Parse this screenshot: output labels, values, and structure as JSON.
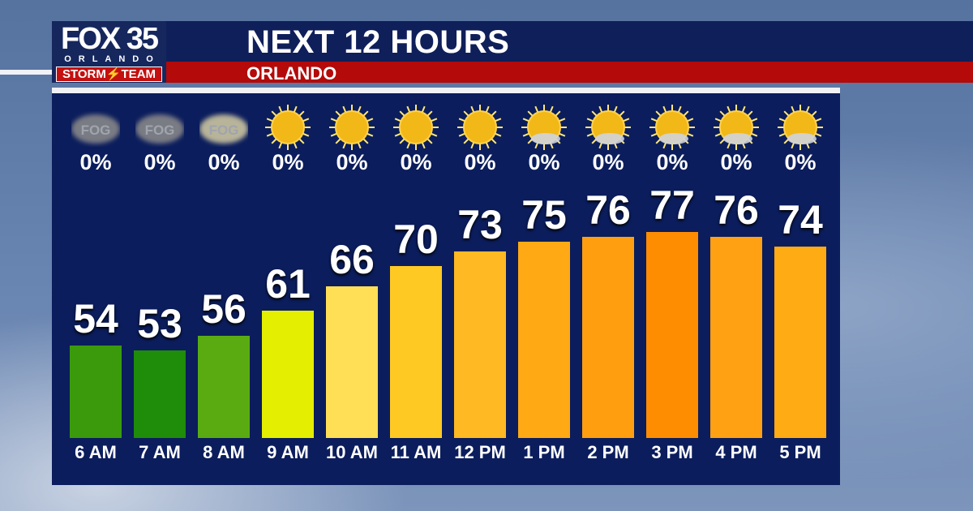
{
  "header": {
    "title": "NEXT 12 HOURS",
    "location": "ORLANDO"
  },
  "logo": {
    "line1": "FOX 35",
    "line2": "ORLANDO",
    "line3": "STORM⚡TEAM"
  },
  "chart_data": {
    "type": "bar",
    "title": "NEXT 12 HOURS",
    "categories": [
      "6 AM",
      "7 AM",
      "8 AM",
      "9 AM",
      "10 AM",
      "11 AM",
      "12 PM",
      "1 PM",
      "2 PM",
      "3 PM",
      "4 PM",
      "5 PM"
    ],
    "values": [
      54,
      53,
      56,
      61,
      66,
      70,
      73,
      75,
      76,
      77,
      76,
      74
    ],
    "precip_chance": [
      "0%",
      "0%",
      "0%",
      "0%",
      "0%",
      "0%",
      "0%",
      "0%",
      "0%",
      "0%",
      "0%",
      "0%"
    ],
    "conditions": [
      "fog",
      "fog",
      "fog",
      "sunny",
      "sunny",
      "sunny",
      "sunny",
      "mostly-sunny",
      "mostly-sunny",
      "mostly-sunny",
      "mostly-sunny",
      "mostly-sunny"
    ],
    "fog_label": "FOG",
    "bar_colors": [
      "#3a9a0c",
      "#1f8c0a",
      "#5aab12",
      "#e3ee00",
      "#ffdf55",
      "#ffc924",
      "#ffb922",
      "#ffaa14",
      "#ff9f10",
      "#ff8d02",
      "#ffa112",
      "#ffab14"
    ]
  }
}
